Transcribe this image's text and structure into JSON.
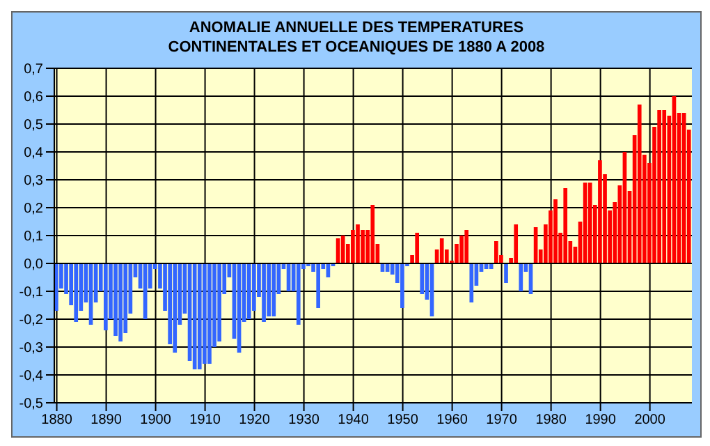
{
  "chart_data": {
    "type": "bar",
    "title": "ANOMALIE ANNUELLE DES TEMPERATURES\nCONTINENTALES ET OCEANIQUES DE 1880 A 2008",
    "x": [
      1880,
      1881,
      1882,
      1883,
      1884,
      1885,
      1886,
      1887,
      1888,
      1889,
      1890,
      1891,
      1892,
      1893,
      1894,
      1895,
      1896,
      1897,
      1898,
      1899,
      1900,
      1901,
      1902,
      1903,
      1904,
      1905,
      1906,
      1907,
      1908,
      1909,
      1910,
      1911,
      1912,
      1913,
      1914,
      1915,
      1916,
      1917,
      1918,
      1919,
      1920,
      1921,
      1922,
      1923,
      1924,
      1925,
      1926,
      1927,
      1928,
      1929,
      1930,
      1931,
      1932,
      1933,
      1934,
      1935,
      1936,
      1937,
      1938,
      1939,
      1940,
      1941,
      1942,
      1943,
      1944,
      1945,
      1946,
      1947,
      1948,
      1949,
      1950,
      1951,
      1952,
      1953,
      1954,
      1955,
      1956,
      1957,
      1958,
      1959,
      1960,
      1961,
      1962,
      1963,
      1964,
      1965,
      1966,
      1967,
      1968,
      1969,
      1970,
      1971,
      1972,
      1973,
      1974,
      1975,
      1976,
      1977,
      1978,
      1979,
      1980,
      1981,
      1982,
      1983,
      1984,
      1985,
      1986,
      1987,
      1988,
      1989,
      1990,
      1991,
      1992,
      1993,
      1994,
      1995,
      1996,
      1997,
      1998,
      1999,
      2000,
      2001,
      2002,
      2003,
      2004,
      2005,
      2006,
      2007,
      2008
    ],
    "values": [
      -0.17,
      -0.09,
      -0.11,
      -0.15,
      -0.21,
      -0.17,
      -0.14,
      -0.22,
      -0.14,
      -0.1,
      -0.24,
      -0.2,
      -0.26,
      -0.28,
      -0.25,
      -0.18,
      -0.05,
      -0.09,
      -0.2,
      -0.09,
      -0.02,
      -0.09,
      -0.17,
      -0.29,
      -0.32,
      -0.22,
      -0.18,
      -0.35,
      -0.38,
      -0.38,
      -0.36,
      -0.36,
      -0.3,
      -0.28,
      -0.11,
      -0.05,
      -0.27,
      -0.32,
      -0.21,
      -0.2,
      -0.17,
      -0.12,
      -0.21,
      -0.19,
      -0.19,
      -0.11,
      -0.02,
      -0.1,
      -0.1,
      -0.22,
      -0.02,
      -0.01,
      -0.03,
      -0.16,
      -0.02,
      -0.05,
      -0.01,
      0.09,
      0.1,
      0.07,
      0.12,
      0.14,
      0.12,
      0.12,
      0.21,
      0.07,
      -0.03,
      -0.03,
      -0.04,
      -0.07,
      -0.16,
      -0.01,
      0.03,
      0.11,
      -0.11,
      -0.13,
      -0.19,
      0.05,
      0.09,
      0.05,
      0.01,
      0.07,
      0.1,
      0.12,
      -0.14,
      -0.08,
      -0.03,
      -0.02,
      -0.02,
      0.08,
      0.03,
      -0.07,
      0.02,
      0.14,
      -0.1,
      -0.03,
      -0.11,
      0.13,
      0.05,
      0.14,
      0.19,
      0.23,
      0.11,
      0.27,
      0.08,
      0.06,
      0.15,
      0.29,
      0.29,
      0.21,
      0.37,
      0.32,
      0.19,
      0.22,
      0.28,
      0.4,
      0.26,
      0.46,
      0.57,
      0.39,
      0.36,
      0.49,
      0.55,
      0.55,
      0.53,
      0.6,
      0.54,
      0.54,
      0.48
    ],
    "colors": [
      "#3366ff",
      "#3366ff",
      "#3366ff",
      "#3366ff",
      "#3366ff",
      "#3366ff",
      "#3366ff",
      "#3366ff",
      "#3366ff",
      "#3366ff",
      "#3366ff",
      "#3366ff",
      "#3366ff",
      "#3366ff",
      "#3366ff",
      "#3366ff",
      "#3366ff",
      "#3366ff",
      "#3366ff",
      "#3366ff",
      "#3366ff",
      "#3366ff",
      "#3366ff",
      "#3366ff",
      "#3366ff",
      "#3366ff",
      "#3366ff",
      "#3366ff",
      "#3366ff",
      "#3366ff",
      "#3366ff",
      "#3366ff",
      "#3366ff",
      "#3366ff",
      "#3366ff",
      "#3366ff",
      "#3366ff",
      "#3366ff",
      "#3366ff",
      "#3366ff",
      "#3366ff",
      "#3366ff",
      "#3366ff",
      "#3366ff",
      "#3366ff",
      "#3366ff",
      "#3366ff",
      "#3366ff",
      "#3366ff",
      "#3366ff",
      "#3366ff",
      "#3366ff",
      "#3366ff",
      "#3366ff",
      "#3366ff",
      "#3366ff",
      "#3366ff",
      "#ff0000",
      "#ff0000",
      "#ff0000",
      "#ff0000",
      "#ff0000",
      "#ff0000",
      "#ff0000",
      "#ff0000",
      "#ff0000",
      "#3366ff",
      "#3366ff",
      "#3366ff",
      "#3366ff",
      "#3366ff",
      "#3366ff",
      "#ff0000",
      "#ff0000",
      "#3366ff",
      "#3366ff",
      "#3366ff",
      "#ff0000",
      "#ff0000",
      "#ff0000",
      "#ff0000",
      "#ff0000",
      "#ff0000",
      "#ff0000",
      "#3366ff",
      "#3366ff",
      "#3366ff",
      "#3366ff",
      "#3366ff",
      "#ff0000",
      "#ff0000",
      "#3366ff",
      "#ff0000",
      "#ff0000",
      "#3366ff",
      "#3366ff",
      "#3366ff",
      "#ff0000",
      "#ff0000",
      "#ff0000",
      "#ff0000",
      "#ff0000",
      "#ff0000",
      "#ff0000",
      "#ff0000",
      "#ff0000",
      "#ff0000",
      "#ff0000",
      "#ff0000",
      "#ff0000",
      "#ff0000",
      "#ff0000",
      "#ff0000",
      "#ff0000",
      "#ff0000",
      "#ff0000",
      "#ff0000",
      "#ff0000",
      "#ff0000",
      "#ff0000",
      "#ff0000",
      "#ff0000",
      "#ff0000",
      "#ff0000",
      "#ff0000",
      "#ff0000",
      "#ff0000",
      "#ff0000",
      "#ff0000"
    ],
    "xlim": [
      1879.5,
      2008.5
    ],
    "xticks": [
      1880,
      1890,
      1900,
      1910,
      1920,
      1930,
      1940,
      1950,
      1960,
      1970,
      1980,
      1990,
      2000
    ],
    "ylim": [
      -0.5,
      0.7
    ],
    "yticks": [
      {
        "value": -0.5,
        "label": "-0,5"
      },
      {
        "value": -0.4,
        "label": "-0,4"
      },
      {
        "value": -0.3,
        "label": "-0,3"
      },
      {
        "value": -0.2,
        "label": "-0,2"
      },
      {
        "value": -0.1,
        "label": "-0,1"
      },
      {
        "value": 0,
        "label": "0,0"
      },
      {
        "value": 0.1,
        "label": "0,1"
      },
      {
        "value": 0.2,
        "label": "0,2"
      },
      {
        "value": 0.3,
        "label": "0,3"
      },
      {
        "value": 0.4,
        "label": "0,4"
      },
      {
        "value": 0.5,
        "label": "0,5"
      },
      {
        "value": 0.6,
        "label": "0,6"
      },
      {
        "value": 0.7,
        "label": "0,7"
      }
    ],
    "grid": true
  }
}
